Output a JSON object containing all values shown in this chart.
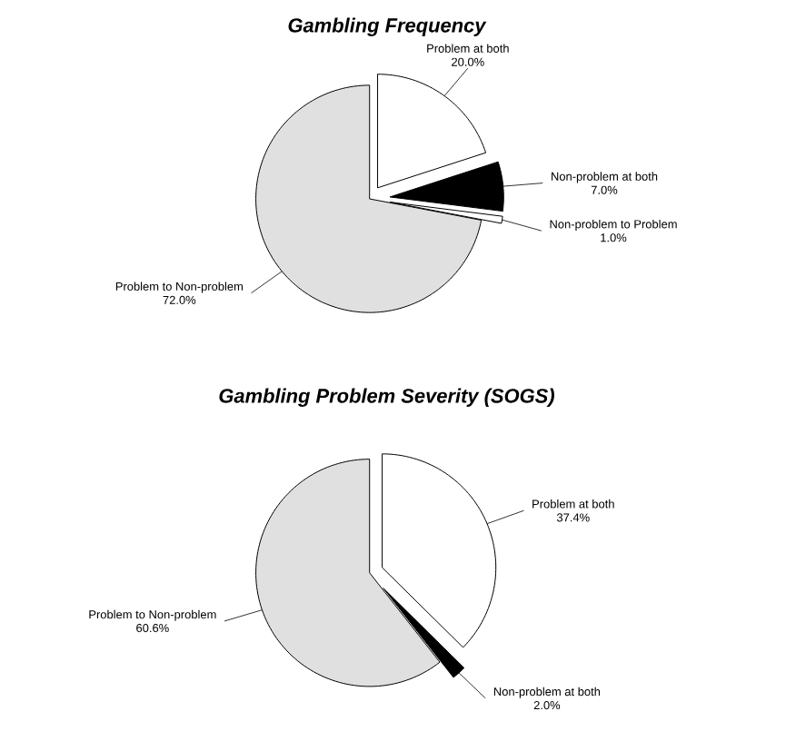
{
  "chart_data": [
    {
      "type": "pie",
      "title": "Gambling Frequency",
      "categories": [
        "Problem at both",
        "Non-problem at both",
        "Non-problem to Problem",
        "Problem to Non-problem"
      ],
      "values": [
        20.0,
        7.0,
        1.0,
        72.0
      ],
      "value_labels": [
        "20.0%",
        "7.0%",
        "1.0%",
        "72.0%"
      ],
      "colors": [
        "#ffffff",
        "#000000",
        "#ffffff",
        "#e0e0e0"
      ]
    },
    {
      "type": "pie",
      "title": "Gambling Problem Severity (SOGS)",
      "categories": [
        "Problem at both",
        "Non-problem at both",
        "Problem to Non-problem"
      ],
      "values": [
        37.4,
        2.0,
        60.6
      ],
      "value_labels": [
        "37.4%",
        "2.0%",
        "60.6%"
      ],
      "colors": [
        "#ffffff",
        "#000000",
        "#e0e0e0"
      ]
    }
  ]
}
